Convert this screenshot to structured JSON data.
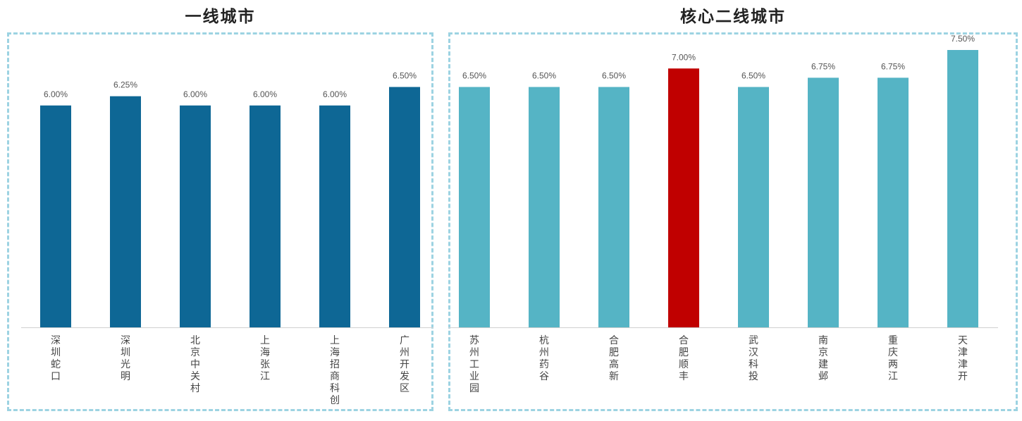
{
  "chart_data": [
    {
      "type": "bar",
      "title": "一线城市",
      "categories": [
        "深圳蛇口",
        "深圳光明",
        "北京中关村",
        "上海张江",
        "上海招商科创",
        "广州开发区"
      ],
      "values": [
        6.0,
        6.25,
        6.0,
        6.0,
        6.0,
        6.5
      ],
      "data_labels": [
        "6.00%",
        "6.25%",
        "6.00%",
        "6.00%",
        "6.00%",
        "6.50%"
      ],
      "colors": [
        "#0e6795",
        "#0e6795",
        "#0e6795",
        "#0e6795",
        "#0e6795",
        "#0e6795"
      ],
      "ylim": [
        0,
        7.9
      ],
      "grid": false,
      "legend": "none"
    },
    {
      "type": "bar",
      "title": "核心二线城市",
      "categories": [
        "苏州工业园",
        "杭州药谷",
        "合肥高新",
        "合肥顺丰",
        "武汉科投",
        "南京建邺",
        "重庆两江",
        "天津津开"
      ],
      "values": [
        6.5,
        6.5,
        6.5,
        7.0,
        6.5,
        6.75,
        6.75,
        7.5
      ],
      "data_labels": [
        "6.50%",
        "6.50%",
        "6.50%",
        "7.00%",
        "6.50%",
        "6.75%",
        "6.75%",
        "7.50%"
      ],
      "colors": [
        "#55b4c5",
        "#55b4c5",
        "#55b4c5",
        "#c00000",
        "#55b4c5",
        "#55b4c5",
        "#55b4c5",
        "#55b4c5"
      ],
      "ylim": [
        0,
        7.9
      ],
      "grid": false,
      "legend": "none"
    }
  ]
}
